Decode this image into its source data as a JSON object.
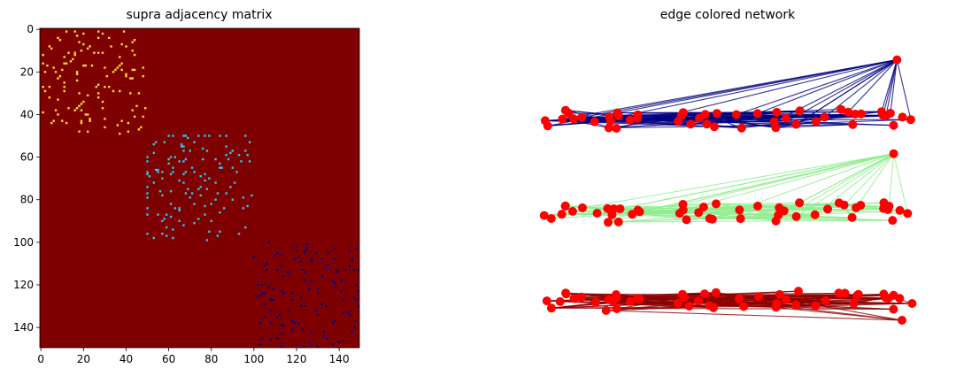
{
  "chart_data": [
    {
      "type": "heatmap",
      "title": "supra adjacency matrix",
      "xlim": [
        0,
        150
      ],
      "ylim": [
        150,
        0
      ],
      "x_ticks": [
        0,
        20,
        40,
        60,
        80,
        100,
        120,
        140
      ],
      "y_ticks": [
        0,
        20,
        40,
        60,
        80,
        100,
        120,
        140
      ],
      "background_color": "#7f0000",
      "blocks": [
        {
          "rows": [
            0,
            50
          ],
          "cols": [
            0,
            50
          ],
          "color": "#f2e02b",
          "density": 0.09
        },
        {
          "rows": [
            50,
            100
          ],
          "cols": [
            50,
            100
          ],
          "color": "#2ec4f0",
          "density": 0.09
        },
        {
          "rows": [
            100,
            150
          ],
          "cols": [
            100,
            150
          ],
          "color": "#00008b",
          "density": 0.11
        }
      ],
      "grid": false
    },
    {
      "type": "network",
      "title": "edge colored network",
      "layers": [
        {
          "edge_color": "#000080"
        },
        {
          "edge_color": "#90ee90"
        },
        {
          "edge_color": "#8b0000"
        }
      ],
      "node_color": "#ff0000",
      "nodes_per_layer": 50,
      "axes_visible": false
    }
  ]
}
